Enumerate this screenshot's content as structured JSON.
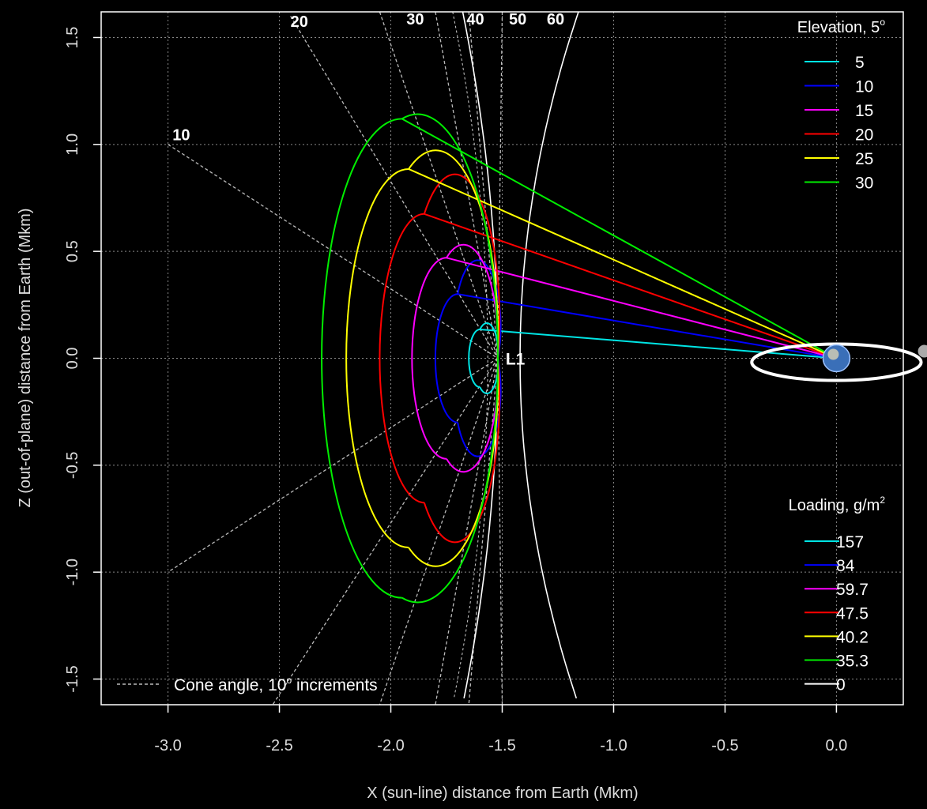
{
  "chart_data": {
    "type": "line",
    "xlabel": "X (sun-line) distance from Earth (Mkm)",
    "ylabel": "Z (out-of-plane) distance from Earth (Mkm)",
    "xlim": [
      -3.3,
      0.3
    ],
    "ylim": [
      -1.62,
      1.62
    ],
    "x_ticks": [
      -3.0,
      -2.5,
      -2.0,
      -1.5,
      -1.0,
      -0.5,
      0.0
    ],
    "x_tick_labels": [
      "-3.0",
      "-2.5",
      "-2.0",
      "-1.5",
      "-1.0",
      "-0.5",
      "0.0"
    ],
    "y_ticks": [
      -1.5,
      -1.0,
      -0.5,
      0.0,
      0.5,
      1.0,
      1.5
    ],
    "y_tick_labels": [
      "-1.5",
      "-1.0",
      "-0.5",
      "0.0",
      "0.5",
      "1.0",
      "1.5"
    ],
    "grid": true,
    "series": [
      {
        "elevation": "5",
        "loading": "157",
        "color": "#00e5e5",
        "center_x": -1.59,
        "semi_x": 0.05,
        "semi_z": 0.135,
        "apex_x": -1.6,
        "apex_z": 0.135
      },
      {
        "elevation": "10",
        "loading": "84",
        "color": "#0000ff",
        "center_x": -1.635,
        "semi_x": 0.1,
        "semi_z": 0.3,
        "apex_x": -1.7,
        "apex_z": 0.3
      },
      {
        "elevation": "15",
        "loading": "59.7",
        "color": "#ff00ff",
        "center_x": -1.685,
        "semi_x": 0.155,
        "semi_z": 0.47,
        "apex_x": -1.75,
        "apex_z": 0.47
      },
      {
        "elevation": "20",
        "loading": "47.5",
        "color": "#ff0000",
        "center_x": -1.7,
        "semi_x": 0.2,
        "semi_z": 0.675,
        "apex_x": -1.85,
        "apex_z": 0.675
      },
      {
        "elevation": "25",
        "loading": "40.2",
        "color": "#ffff00",
        "center_x": -1.67,
        "semi_x": 0.28,
        "semi_z": 0.885,
        "apex_x": -1.92,
        "apex_z": 0.885
      },
      {
        "elevation": "30",
        "loading": "35.3",
        "color": "#00ee00",
        "center_x": -1.64,
        "semi_x": 0.36,
        "semi_z": 1.12,
        "apex_x": -1.95,
        "apex_z": 1.12
      }
    ],
    "cone_lines": [
      {
        "label": "10",
        "x_top": -3.0,
        "z_top": 1.0,
        "x_bottom": -3.0,
        "z_bottom": -1.0
      },
      {
        "label": "20",
        "x_top": -2.45,
        "z_top": 1.6,
        "x_bottom": -2.53,
        "z_bottom": -1.62
      },
      {
        "label": "30",
        "x_top": -2.05,
        "z_top": 1.62,
        "x_bottom": -2.05,
        "z_bottom": -1.62
      },
      {
        "label": "40",
        "x_top": -1.8,
        "z_top": 1.62,
        "x_bottom": -1.8,
        "z_bottom": -1.62
      },
      {
        "label": "50",
        "x_top": -1.65,
        "z_top": 1.62,
        "x_bottom": -1.65,
        "z_bottom": -1.62
      },
      {
        "label": "60",
        "x_top": -1.5,
        "z_top": 1.62,
        "x_bottom": -1.5,
        "z_bottom": -1.62
      }
    ],
    "cone_label_positions": [
      {
        "label": "10",
        "x": -2.98,
        "z": 1.02
      },
      {
        "label": "20",
        "x": -2.45,
        "z": 1.55
      },
      {
        "label": "30",
        "x": -1.93,
        "z": 1.56
      },
      {
        "label": "40",
        "x": -1.66,
        "z": 1.56
      },
      {
        "label": "50",
        "x": -1.47,
        "z": 1.56
      },
      {
        "label": "60",
        "x": -1.3,
        "z": 1.56
      }
    ],
    "boundary_inner_x": -1.52,
    "boundary_outer_x": -1.22,
    "l1_point": {
      "label": "L1",
      "x": -1.52,
      "z": 0.0
    },
    "earth_point": {
      "x": 0.0,
      "z": 0.0
    },
    "moon_orbit": {
      "rx": 0.38,
      "rz": 0.085
    }
  },
  "legend_elevation": {
    "title": "Elevation, 5",
    "title_sup": "o",
    "entries": [
      {
        "label": "5",
        "color": "#00e5e5"
      },
      {
        "label": "10",
        "color": "#0000ff"
      },
      {
        "label": "15",
        "color": "#ff00ff"
      },
      {
        "label": "20",
        "color": "#ff0000"
      },
      {
        "label": "25",
        "color": "#ffff00"
      },
      {
        "label": "30",
        "color": "#00ee00"
      }
    ]
  },
  "legend_loading": {
    "title": "Loading, g",
    "title_tail": "/m",
    "title_sup": "2",
    "entries": [
      {
        "label": "157",
        "color": "#00e5e5"
      },
      {
        "label": "84",
        "color": "#0000ff"
      },
      {
        "label": "59.7",
        "color": "#ff00ff"
      },
      {
        "label": "47.5",
        "color": "#ff0000"
      },
      {
        "label": "40.2",
        "color": "#ffff00"
      },
      {
        "label": "35.3",
        "color": "#00ee00"
      },
      {
        "label": "0",
        "color": "#ffffff"
      }
    ]
  },
  "cone_note": {
    "text": "Cone angle, 10",
    "sup": "o",
    "tail": " increments"
  }
}
